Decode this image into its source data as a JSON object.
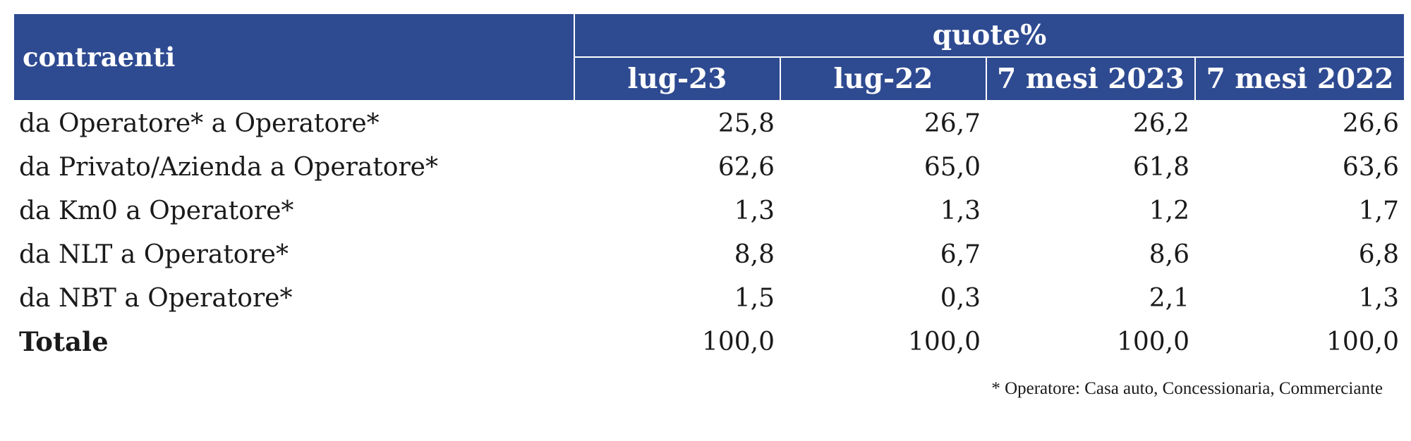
{
  "table": {
    "header": {
      "label_column": "contraenti",
      "group_title": "quote%",
      "columns": [
        "lug-23",
        "lug-22",
        "7 mesi 2023",
        "7 mesi 2022"
      ]
    },
    "rows": [
      {
        "label": "da Operatore* a Operatore*",
        "values": [
          "25,8",
          "26,7",
          "26,2",
          "26,6"
        ]
      },
      {
        "label": "da Privato/Azienda a Operatore*",
        "values": [
          "62,6",
          "65,0",
          "61,8",
          "63,6"
        ]
      },
      {
        "label": "da Km0 a Operatore*",
        "values": [
          "1,3",
          "1,3",
          "1,2",
          "1,7"
        ]
      },
      {
        "label": "da NLT a Operatore*",
        "values": [
          "8,8",
          "6,7",
          "8,6",
          "6,8"
        ]
      },
      {
        "label": "da NBT a Operatore*",
        "values": [
          "1,5",
          "0,3",
          "2,1",
          "1,3"
        ]
      },
      {
        "label": "Totale",
        "values": [
          "100,0",
          "100,0",
          "100,0",
          "100,0"
        ]
      }
    ]
  },
  "footnote": "* Operatore: Casa auto, Concessionaria, Commerciante",
  "colors": {
    "header_background": "#2e4a91",
    "header_text": "#ffffff"
  }
}
